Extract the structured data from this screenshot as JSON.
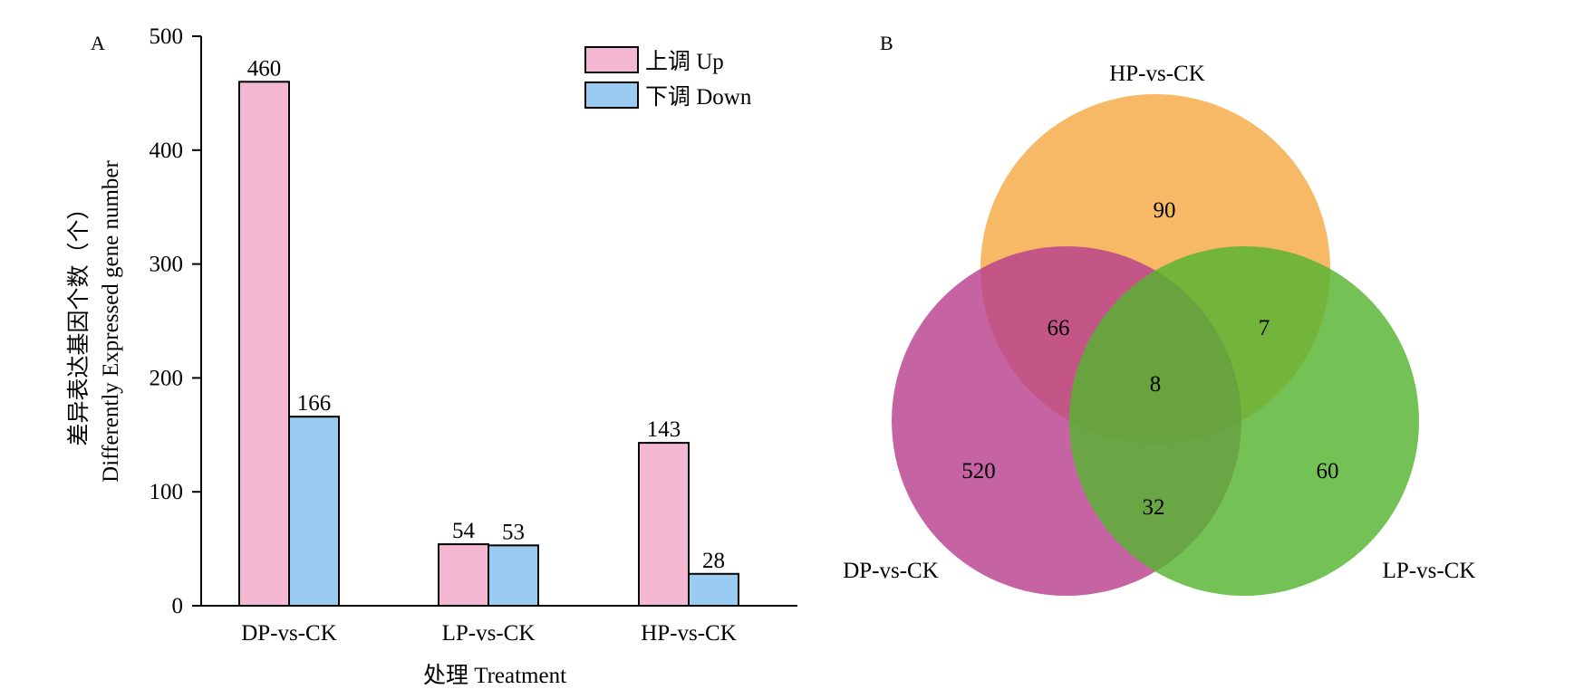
{
  "chart_data": [
    {
      "type": "bar",
      "panel_label": "A",
      "categories": [
        "DP-vs-CK",
        "LP-vs-CK",
        "HP-vs-CK"
      ],
      "series": [
        {
          "name": "上调 Up",
          "values": [
            460,
            54,
            143
          ],
          "color": "#f4b8d3"
        },
        {
          "name": "下调 Down",
          "values": [
            166,
            53,
            28
          ],
          "color": "#99ccf0"
        }
      ],
      "xlabel": "处理 Treatment",
      "ylabel_cn": "差异表达基因个数（个）",
      "ylabel_en": "Differently Expressed gene number",
      "ylim": [
        0,
        500
      ],
      "yticks": [
        0,
        100,
        200,
        300,
        400,
        500
      ],
      "legend_position": "top-right",
      "grid": false
    },
    {
      "type": "venn",
      "panel_label": "B",
      "sets": [
        {
          "name": "HP-vs-CK",
          "color": "#f5a943"
        },
        {
          "name": "DP-vs-CK",
          "color": "#b8418f"
        },
        {
          "name": "LP-vs-CK",
          "color": "#56b431"
        }
      ],
      "regions": {
        "HP_only": 90,
        "DP_only": 520,
        "LP_only": 60,
        "HP_DP": 66,
        "HP_LP": 7,
        "DP_LP": 32,
        "all": 8
      }
    }
  ]
}
